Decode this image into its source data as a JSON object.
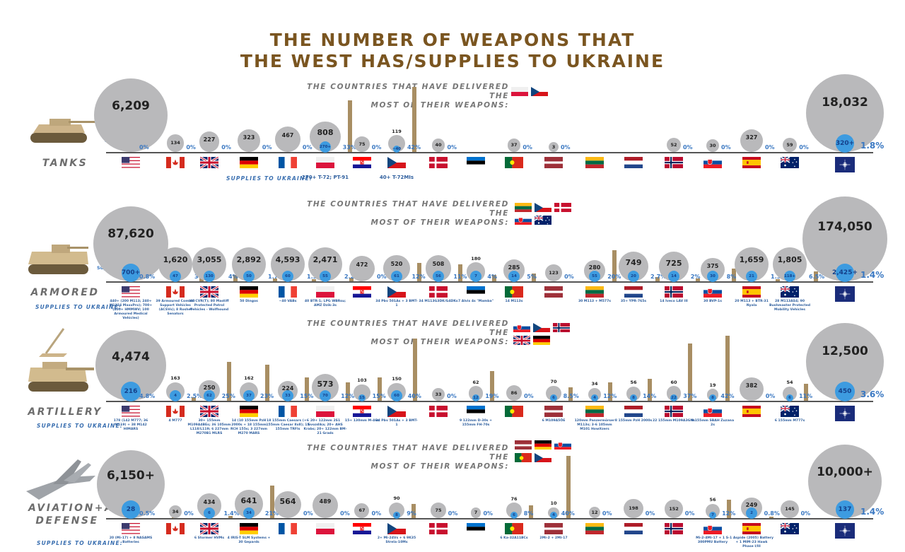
{
  "title": {
    "line1": "THE NUMBER OF WEAPONS THAT",
    "line2": "THE WEST HAS/SUPPLIES TO UKRAINE"
  },
  "labels": {
    "most_line1": "THE COUNTRIES THAT HAVE DELIVERED THE",
    "most_line2": "MOST OF THEIR WEAPONS:",
    "supplies": "SUPPLIES TO UKRAINE:",
    "supplied_to_ukraine": "Supplied To Ukraine"
  },
  "colors": {
    "title": "#7a5520",
    "stock_circle": "#b9b9bb",
    "supplied_circle": "#3d9be0",
    "percent_text": "#3a78c2",
    "bar": "#a88e63"
  },
  "countries": [
    "USA",
    "Canada",
    "UK",
    "Germany",
    "France",
    "Poland",
    "Croatia",
    "Czech Republic",
    "Denmark",
    "Estonia",
    "Portugal",
    "Latvia",
    "Lithuania",
    "Netherlands",
    "Norway",
    "Slovakia",
    "Spain",
    "Australia",
    "NATO"
  ],
  "chart_data": [
    {
      "type": "bubble",
      "category": "TANKS",
      "most_delivered": [
        "Poland",
        "Czech Republic"
      ],
      "supplies_note": {
        "Poland": "270+ T-72; PT-91",
        "Czech Republic": "40+ T-72MIs"
      },
      "stock": [
        6209,
        134,
        227,
        323,
        467,
        808,
        75,
        119,
        40,
        null,
        37,
        3,
        null,
        null,
        52,
        30,
        327,
        59,
        18032
      ],
      "stock_labels": [
        "6,209",
        "134",
        "227",
        "323",
        "467",
        "808",
        "75",
        "119",
        "40",
        "",
        "37",
        "3",
        "",
        "",
        "52",
        "30",
        "327",
        "59",
        "18,032"
      ],
      "supplied_labels": [
        "",
        "",
        "",
        "",
        "",
        "270+",
        "",
        "~40",
        "",
        "",
        "",
        "",
        "",
        "",
        "",
        "",
        "",
        "",
        "320+"
      ],
      "percent_labels": [
        "0%",
        "0%",
        "0%",
        "0%",
        "0%",
        "33%",
        "0%",
        "42%",
        "0%",
        "",
        "0%",
        "0%",
        "",
        "",
        "0%",
        "0%",
        "0%",
        "0%",
        "1.8%"
      ],
      "percent": [
        0,
        0,
        0,
        0,
        0,
        33,
        0,
        42,
        0,
        null,
        0,
        0,
        null,
        null,
        0,
        0,
        0,
        0,
        1.8
      ]
    },
    {
      "type": "bubble",
      "category": "ARMORED",
      "most_delivered": [
        "Lithuania",
        "Czech Republic",
        "Denmark",
        "Slovakia",
        "Australia"
      ],
      "supplies_note": {
        "USA": "440+ (200 M113; 240+ M1224 MaxxPro); 700+ (400+ HMMWV; 100 Armoured Medical Vehicles)",
        "Canada": "39 Armoured Combat Support Vehicles (ACSVs); 8 Roshel Senators",
        "UK": "40 CVR(T); 80 Mastiff Protected Patrol Vehicles - Wolfhound",
        "Germany": "50 Dingos",
        "France": "~40 VABs",
        "Poland": "40 BTR-1; LPG WBRsu; AMZ Dzik-3s",
        "Czech Republic": "34 Pbv 501As + 3 BMT-1",
        "Denmark": "34 M113G3DK/G4DKs",
        "Estonia": "7 Alvis 4s \"Mamba\"",
        "Portugal": "14 M113s",
        "Lithuania": "30 M113 + M577s",
        "Netherlands": "35+ YPR-765s",
        "Norway": "14 Iveco LAV III",
        "Slovakia": "30 BVP-1s",
        "Spain": "20 M113 + BTR-31 Nyala",
        "Australia": "28 M113AS4; 90 Bushmaster Protected Mobility Vehicles"
      },
      "stock": [
        87620,
        1620,
        3055,
        2892,
        4593,
        2471,
        472,
        520,
        508,
        180,
        285,
        123,
        280,
        749,
        725,
        375,
        1659,
        1805,
        174050
      ],
      "stock_labels": [
        "87,620",
        "1,620",
        "3,055",
        "2,892",
        "4,593",
        "2,471",
        "472",
        "520",
        "508",
        "180",
        "285",
        "123",
        "280",
        "749",
        "725",
        "375",
        "1,659",
        "1,805",
        "174,050"
      ],
      "supplied_labels": [
        "700+",
        "47",
        "130",
        "50",
        "60",
        "55",
        "",
        "61",
        "56",
        "7",
        "14",
        "",
        "55",
        "20",
        "14",
        "30",
        "21",
        "118+",
        "2,425+"
      ],
      "percent_labels": [
        "0.8%",
        "3%",
        "4%",
        "1.7%",
        "1.3%",
        "2.2%",
        "0%",
        "12%",
        "11%",
        "4%",
        "5%",
        "0%",
        "20%",
        "2.7%",
        "2%",
        "8%",
        "1.3%",
        "6.5%",
        "1.4%"
      ],
      "percent": [
        0.8,
        3,
        4,
        1.7,
        1.3,
        2.2,
        0,
        12,
        11,
        4,
        5,
        0,
        20,
        2.7,
        2,
        8,
        1.3,
        6.5,
        1.4
      ]
    },
    {
      "type": "bubble",
      "category": "ARTILLERY",
      "most_delivered": [
        "Slovakia",
        "Czech Republic",
        "Norway",
        "UK",
        "Germany"
      ],
      "supplies_note": {
        "USA": "178 (142 M777; 36 M119) + 38 M142 HIMARS",
        "Canada": "4 M777",
        "UK": "30+ 155mm M109A4BEs; 36 105mm L118/L119; 6 227mm M270B1 MLRS",
        "Germany": "14 (10 155mm PzH 2000s + 18 155mm RCH 155s; 3 227mm M270 MARS",
        "France": "18 155mm Caesars (+6 155mm Caesar 8x8); 15 155mm TRFIs",
        "Poland": "20+ 122mm 2S1 Gvozdika; 20+ AHS Krabs; 20+ 122mm BM-21 Grads",
        "Croatia": "15+ 130mm M-46s",
        "Czech Republic": "34 Pbv 501As + 3 BMT-1",
        "Estonia": "9 122mm D-30s + 155mm FH-70s",
        "Latvia": "6 M109A5ÖE",
        "Lithuania": "120mm Panzermörser M113s; 3-6 105mm M101 Howitzers",
        "Netherlands": "8 155mm PzH 2000s",
        "Norway": "22 155mm M109A3GNs",
        "Slovakia": "8 155mm SBAH Zuzana 2s",
        "Australia": "6 155mm M777s"
      },
      "stock": [
        4474,
        163,
        250,
        162,
        224,
        573,
        103,
        150,
        33,
        62,
        86,
        70,
        34,
        56,
        60,
        19,
        382,
        54,
        12500
      ],
      "stock_labels": [
        "4,474",
        "163",
        "250",
        "162",
        "224",
        "573",
        "103",
        "150",
        "33",
        "62",
        "86",
        "70",
        "34",
        "56",
        "60",
        "19",
        "382",
        "54",
        "12,500"
      ],
      "supplied_labels": [
        "216",
        "4",
        "62",
        "37",
        "33",
        "70",
        "15",
        "60",
        "",
        "12",
        "",
        "6",
        "4",
        "8",
        "22",
        "8",
        "",
        "6",
        "450"
      ],
      "percent_labels": [
        "4.8%",
        "2.5%",
        "25%",
        "23%",
        "15%",
        "12%",
        "15%",
        "40%",
        "0%",
        "19%",
        "0%",
        "8.5%",
        "12%",
        "14%",
        "37%",
        "42%",
        "0%",
        "11%",
        "3.6%"
      ],
      "percent": [
        4.8,
        2.5,
        25,
        23,
        15,
        12,
        15,
        40,
        0,
        19,
        0,
        8.5,
        12,
        14,
        37,
        42,
        0,
        11,
        3.6
      ]
    },
    {
      "type": "bubble",
      "category": "AVIATION+AIR DEFENSE",
      "most_delivered": [
        "Latvia",
        "Germany",
        "Slovakia",
        "Portugal",
        "Czech Republic"
      ],
      "supplies_note": {
        "USA": "20 (Mi-17) + 8 NASAMS Batteries",
        "UK": "6 Stormer HVMs",
        "Germany": "4 IRIS-T SLM Systems + 30 Gepards",
        "Czech Republic": "2+ Mi-24Vs + 6 9K35 Strela-10Ms",
        "Portugal": "6 Ka-32A11BCs",
        "Latvia": "2Mi-2 + 2Mi-17",
        "Slovakia": "Mi-2-4Mi-17 + 1 S-300PMU Battery",
        "Spain": "1 Aspide (2005) Battery + 1 MIM-23 Hawk Phase I/III"
      },
      "stock": [
        6150,
        34,
        434,
        641,
        564,
        489,
        67,
        90,
        75,
        7,
        76,
        10,
        12,
        198,
        152,
        56,
        249,
        145,
        10000
      ],
      "stock_labels": [
        "6,150+",
        "34",
        "434",
        "641",
        "564",
        "489",
        "67",
        "90",
        "75",
        "7",
        "76",
        "10",
        "12",
        "198",
        "152",
        "56",
        "249",
        "145",
        "10,000+"
      ],
      "supplied_labels": [
        "28",
        "",
        "6",
        "34",
        "",
        "",
        "",
        "8",
        "",
        "",
        "6",
        "4",
        "",
        "",
        "",
        "7",
        "2",
        "",
        "137"
      ],
      "percent_labels": [
        "0.5%",
        "0%",
        "1.4%",
        "21%",
        "0%",
        "0%",
        "0%",
        "9%",
        "0%",
        "0%",
        "8%",
        "40%",
        "0%",
        "0%",
        "0%",
        "12%",
        "0.8%",
        "0%",
        "1.4%"
      ],
      "percent": [
        0.5,
        0,
        1.4,
        21,
        0,
        0,
        0,
        9,
        0,
        0,
        8,
        40,
        0,
        0,
        0,
        12,
        0.8,
        0,
        1.4
      ]
    }
  ]
}
